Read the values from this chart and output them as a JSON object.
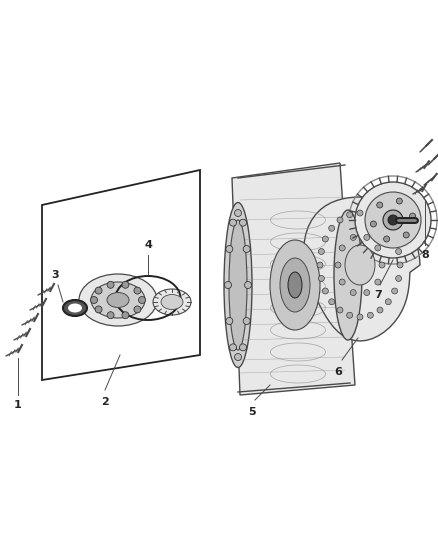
{
  "bg_color": "#ffffff",
  "line_color": "#4a4a4a",
  "dark_line": "#222222",
  "light_gray": "#bbbbbb",
  "medium_gray": "#888888",
  "fill_light": "#e8e8e8",
  "fill_mid": "#d0d0d0",
  "fill_dark": "#b0b0b0",
  "figsize": [
    4.38,
    5.33
  ],
  "dpi": 100
}
